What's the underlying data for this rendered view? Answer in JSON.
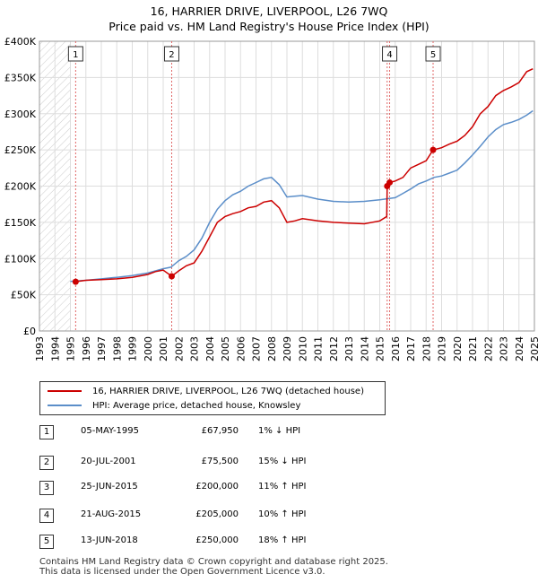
{
  "chart_title": {
    "line1": "16, HARRIER DRIVE, LIVERPOOL, L26 7WQ",
    "line2": "Price paid vs. HM Land Registry's House Price Index (HPI)"
  },
  "colors": {
    "property": "#cc0000",
    "hpi": "#5b8ec9",
    "marker_line": "#e06666",
    "hatch": "#cccccc",
    "grid": "#dddddd"
  },
  "chart_data": {
    "type": "line",
    "title": "16, HARRIER DRIVE, LIVERPOOL, L26 7WQ — Price paid vs. HM Land Registry's House Price Index (HPI)",
    "xlim": [
      1993,
      2025
    ],
    "ylim": [
      0,
      400000
    ],
    "grid": true,
    "x_ticks": [
      "1993",
      "1994",
      "1995",
      "1996",
      "1997",
      "1998",
      "1999",
      "2000",
      "2001",
      "2002",
      "2003",
      "2004",
      "2005",
      "2006",
      "2007",
      "2008",
      "2009",
      "2010",
      "2011",
      "2012",
      "2013",
      "2014",
      "2015",
      "2016",
      "2017",
      "2018",
      "2019",
      "2020",
      "2021",
      "2022",
      "2023",
      "2024",
      "2025"
    ],
    "y_ticks": [
      {
        "value": 0,
        "label": "£0"
      },
      {
        "value": 50000,
        "label": "£50K"
      },
      {
        "value": 100000,
        "label": "£100K"
      },
      {
        "value": 150000,
        "label": "£150K"
      },
      {
        "value": 200000,
        "label": "£200K"
      },
      {
        "value": 250000,
        "label": "£250K"
      },
      {
        "value": 300000,
        "label": "£300K"
      },
      {
        "value": 350000,
        "label": "£350K"
      },
      {
        "value": 400000,
        "label": "£400K"
      }
    ],
    "series": [
      {
        "name": "16, HARRIER DRIVE, LIVERPOOL, L26 7WQ (detached house)",
        "color": "#cc0000",
        "points": [
          [
            1995.3,
            67950
          ],
          [
            1996,
            70000
          ],
          [
            1997,
            71000
          ],
          [
            1998,
            72000
          ],
          [
            1999,
            74000
          ],
          [
            2000,
            78000
          ],
          [
            2000.5,
            82000
          ],
          [
            2001,
            84000
          ],
          [
            2001.55,
            75500
          ],
          [
            2002,
            83000
          ],
          [
            2002.5,
            90000
          ],
          [
            2003,
            94000
          ],
          [
            2003.5,
            110000
          ],
          [
            2004,
            130000
          ],
          [
            2004.5,
            150000
          ],
          [
            2005,
            158000
          ],
          [
            2005.5,
            162000
          ],
          [
            2006,
            165000
          ],
          [
            2006.5,
            170000
          ],
          [
            2007,
            172000
          ],
          [
            2007.5,
            178000
          ],
          [
            2008,
            180000
          ],
          [
            2008.5,
            170000
          ],
          [
            2009,
            150000
          ],
          [
            2009.5,
            152000
          ],
          [
            2010,
            155000
          ],
          [
            2011,
            152000
          ],
          [
            2012,
            150000
          ],
          [
            2013,
            149000
          ],
          [
            2014,
            148000
          ],
          [
            2015,
            152000
          ],
          [
            2015.45,
            158000
          ],
          [
            2015.48,
            200000
          ],
          [
            2015.64,
            205000
          ],
          [
            2016,
            207000
          ],
          [
            2016.5,
            212000
          ],
          [
            2017,
            225000
          ],
          [
            2017.5,
            230000
          ],
          [
            2018,
            235000
          ],
          [
            2018.45,
            250000
          ],
          [
            2019,
            253000
          ],
          [
            2019.5,
            258000
          ],
          [
            2020,
            262000
          ],
          [
            2020.5,
            270000
          ],
          [
            2021,
            282000
          ],
          [
            2021.5,
            300000
          ],
          [
            2022,
            310000
          ],
          [
            2022.5,
            325000
          ],
          [
            2023,
            332000
          ],
          [
            2023.5,
            337000
          ],
          [
            2024,
            343000
          ],
          [
            2024.5,
            358000
          ],
          [
            2024.9,
            362000
          ]
        ]
      },
      {
        "name": "HPI: Average price, detached house, Knowsley",
        "color": "#5b8ec9",
        "points": [
          [
            1995,
            68500
          ],
          [
            1996,
            70000
          ],
          [
            1997,
            72000
          ],
          [
            1998,
            74000
          ],
          [
            1999,
            76500
          ],
          [
            2000,
            80000
          ],
          [
            2001,
            86000
          ],
          [
            2001.5,
            88000
          ],
          [
            2002,
            97000
          ],
          [
            2002.5,
            103000
          ],
          [
            2003,
            112000
          ],
          [
            2003.5,
            128000
          ],
          [
            2004,
            150000
          ],
          [
            2004.5,
            168000
          ],
          [
            2005,
            180000
          ],
          [
            2005.5,
            188000
          ],
          [
            2006,
            193000
          ],
          [
            2006.5,
            200000
          ],
          [
            2007,
            205000
          ],
          [
            2007.5,
            210000
          ],
          [
            2008,
            212000
          ],
          [
            2008.5,
            202000
          ],
          [
            2009,
            185000
          ],
          [
            2009.5,
            186000
          ],
          [
            2010,
            187000
          ],
          [
            2011,
            182000
          ],
          [
            2012,
            179000
          ],
          [
            2013,
            178000
          ],
          [
            2014,
            179000
          ],
          [
            2015,
            181000
          ],
          [
            2016,
            184000
          ],
          [
            2016.5,
            190000
          ],
          [
            2017,
            196000
          ],
          [
            2017.5,
            203000
          ],
          [
            2018,
            207000
          ],
          [
            2018.5,
            212000
          ],
          [
            2019,
            214000
          ],
          [
            2019.5,
            218000
          ],
          [
            2020,
            222000
          ],
          [
            2020.5,
            232000
          ],
          [
            2021,
            243000
          ],
          [
            2021.5,
            255000
          ],
          [
            2022,
            268000
          ],
          [
            2022.5,
            278000
          ],
          [
            2023,
            285000
          ],
          [
            2023.5,
            288000
          ],
          [
            2024,
            292000
          ],
          [
            2024.5,
            298000
          ],
          [
            2024.9,
            304000
          ]
        ]
      }
    ],
    "sales": [
      {
        "num": "1",
        "x": 1995.34
      },
      {
        "num": "2",
        "x": 2001.55
      },
      {
        "num": "3",
        "x": 2015.48
      },
      {
        "num": "4",
        "x": 2015.64
      },
      {
        "num": "5",
        "x": 2018.45
      }
    ],
    "marker_labels": [
      "1",
      "2",
      "4",
      "5"
    ]
  },
  "legend": {
    "property": "16, HARRIER DRIVE, LIVERPOOL, L26 7WQ (detached house)",
    "hpi": "HPI: Average price, detached house, Knowsley"
  },
  "sales_table": [
    {
      "num": "1",
      "date": "05-MAY-1995",
      "price": "£67,950",
      "hpi": "1% ↓ HPI"
    },
    {
      "num": "2",
      "date": "20-JUL-2001",
      "price": "£75,500",
      "hpi": "15% ↓ HPI"
    },
    {
      "num": "3",
      "date": "25-JUN-2015",
      "price": "£200,000",
      "hpi": "11% ↑ HPI"
    },
    {
      "num": "4",
      "date": "21-AUG-2015",
      "price": "£205,000",
      "hpi": "10% ↑ HPI"
    },
    {
      "num": "5",
      "date": "13-JUN-2018",
      "price": "£250,000",
      "hpi": "18% ↑ HPI"
    }
  ],
  "footer": {
    "line1": "Contains HM Land Registry data © Crown copyright and database right 2025.",
    "line2": "This data is licensed under the Open Government Licence v3.0."
  }
}
